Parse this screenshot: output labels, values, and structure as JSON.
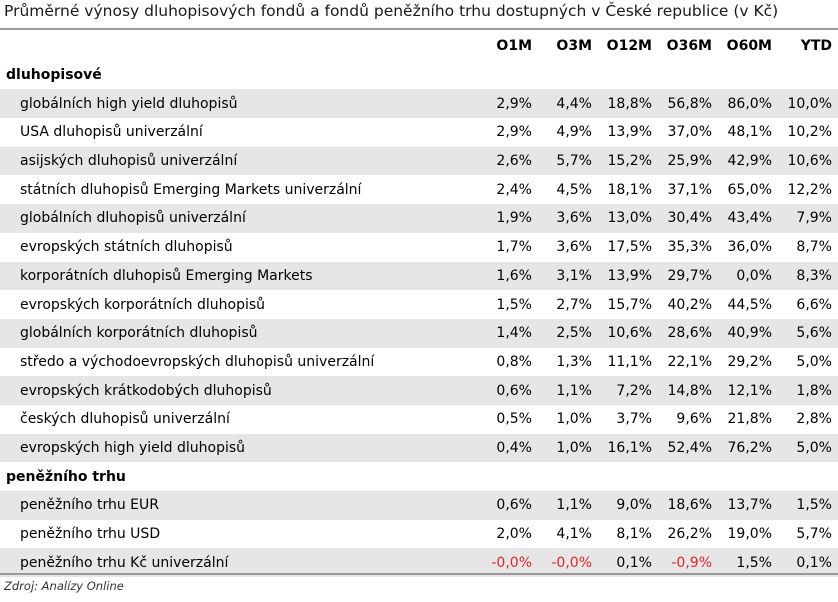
{
  "title": "Průměrné výnosy dluhopisových fondů a fondů peněžního trhu dostupných v České republice (v Kč)",
  "columns": [
    "O1M",
    "O3M",
    "O12M",
    "O36M",
    "O60M",
    "YTD"
  ],
  "sections": [
    {
      "name": "dluhopisové",
      "rows": [
        {
          "label": "globálních high yield dluhopisů",
          "values": [
            "2,9%",
            "4,4%",
            "18,8%",
            "56,8%",
            "86,0%",
            "10,0%"
          ]
        },
        {
          "label": "USA dluhopisů univerzální",
          "values": [
            "2,9%",
            "4,9%",
            "13,9%",
            "37,0%",
            "48,1%",
            "10,2%"
          ]
        },
        {
          "label": "asijských dluhopisů univerzální",
          "values": [
            "2,6%",
            "5,7%",
            "15,2%",
            "25,9%",
            "42,9%",
            "10,6%"
          ]
        },
        {
          "label": "státních dluhopisů Emerging Markets univerzální",
          "values": [
            "2,4%",
            "4,5%",
            "18,1%",
            "37,1%",
            "65,0%",
            "12,2%"
          ]
        },
        {
          "label": "globálních dluhopisů univerzální",
          "values": [
            "1,9%",
            "3,6%",
            "13,0%",
            "30,4%",
            "43,4%",
            "7,9%"
          ]
        },
        {
          "label": "evropských státních dluhopisů",
          "values": [
            "1,7%",
            "3,6%",
            "17,5%",
            "35,3%",
            "36,0%",
            "8,7%"
          ]
        },
        {
          "label": "korporátních dluhopisů Emerging Markets",
          "values": [
            "1,6%",
            "3,1%",
            "13,9%",
            "29,7%",
            "0,0%",
            "8,3%"
          ]
        },
        {
          "label": "evropských korporátních dluhopisů",
          "values": [
            "1,5%",
            "2,7%",
            "15,7%",
            "40,2%",
            "44,5%",
            "6,6%"
          ]
        },
        {
          "label": "globálních korporátních dluhopisů",
          "values": [
            "1,4%",
            "2,5%",
            "10,6%",
            "28,6%",
            "40,9%",
            "5,6%"
          ]
        },
        {
          "label": "středo a východoevropských dluhopisů univerzální",
          "values": [
            "0,8%",
            "1,3%",
            "11,1%",
            "22,1%",
            "29,2%",
            "5,0%"
          ]
        },
        {
          "label": "evropských krátkodobých dluhopisů",
          "values": [
            "0,6%",
            "1,1%",
            "7,2%",
            "14,8%",
            "12,1%",
            "1,8%"
          ]
        },
        {
          "label": "českých dluhopisů univerzální",
          "values": [
            "0,5%",
            "1,0%",
            "3,7%",
            "9,6%",
            "21,8%",
            "2,8%"
          ]
        },
        {
          "label": "evropských high yield dluhopisů",
          "values": [
            "0,4%",
            "1,0%",
            "16,1%",
            "52,4%",
            "76,2%",
            "5,0%"
          ]
        }
      ]
    },
    {
      "name": "peněžního trhu",
      "rows": [
        {
          "label": "peněžního trhu EUR",
          "values": [
            "0,6%",
            "1,1%",
            "9,0%",
            "18,6%",
            "13,7%",
            "1,5%"
          ]
        },
        {
          "label": "peněžního trhu USD",
          "values": [
            "2,0%",
            "4,1%",
            "8,1%",
            "26,2%",
            "19,0%",
            "5,7%"
          ]
        },
        {
          "label": "peněžního trhu Kč univerzální",
          "values": [
            "-0,0%",
            "-0,0%",
            "0,1%",
            "-0,9%",
            "1,5%",
            "0,1%"
          ]
        }
      ]
    }
  ],
  "source": "Zdroj: Analízy Online",
  "colors": {
    "negative": "#e0252d",
    "shade": "#e6e6e6",
    "rule": "#9a9a9a"
  }
}
